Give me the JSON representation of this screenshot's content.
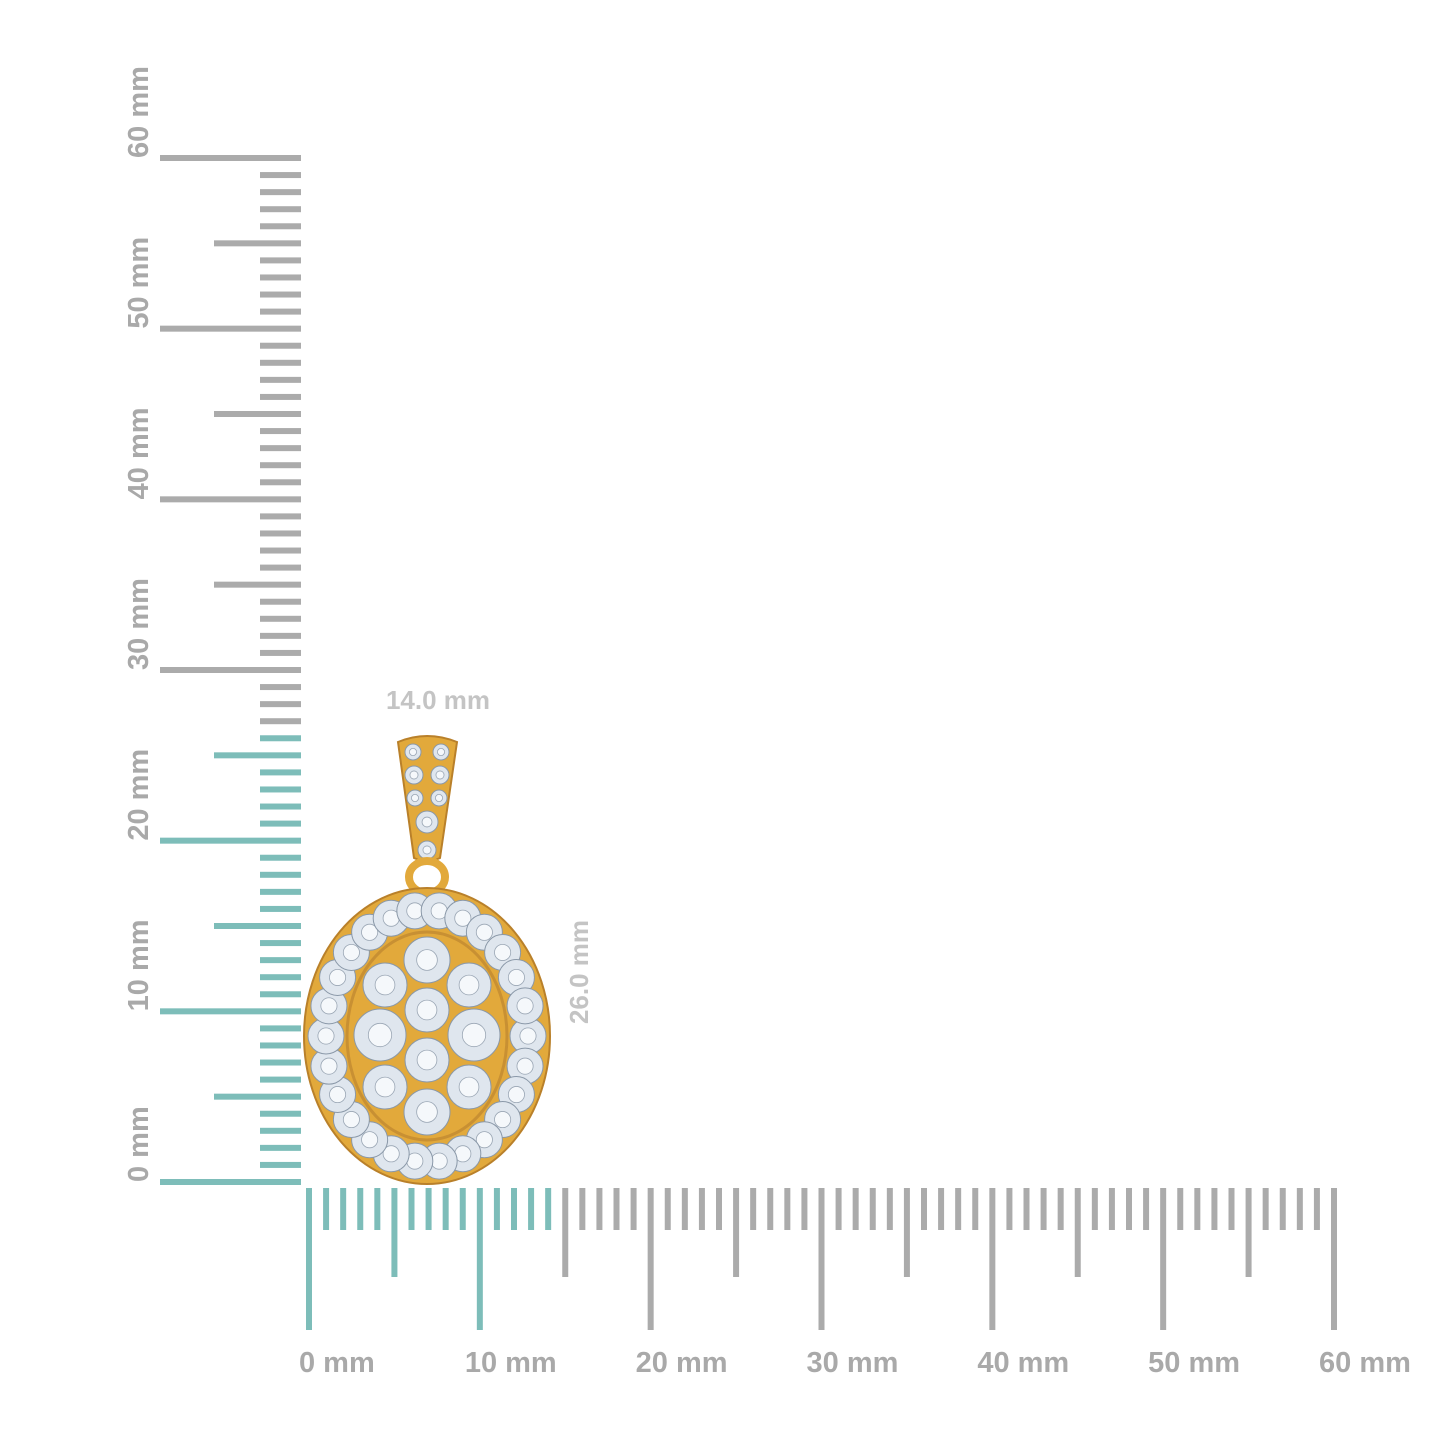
{
  "ruler": {
    "unit": "mm",
    "max": 60,
    "highlight_color": "#7dbdb9",
    "tick_color": "#ababab",
    "vertical_labels": [
      "0 mm",
      "10 mm",
      "20 mm",
      "30 mm",
      "40 mm",
      "50 mm",
      "60 mm"
    ],
    "horizontal_labels": [
      "0 mm",
      "10 mm",
      "20 mm",
      "30 mm",
      "40 mm",
      "50 mm",
      "60 mm"
    ],
    "highlight_height_mm": 26,
    "highlight_width_mm": 14
  },
  "dimensions": {
    "width_label": "14.0 mm",
    "height_label": "26.0 mm"
  },
  "product": {
    "metal_color": "#e2a93b",
    "stone_color": "#dfe6ee"
  }
}
